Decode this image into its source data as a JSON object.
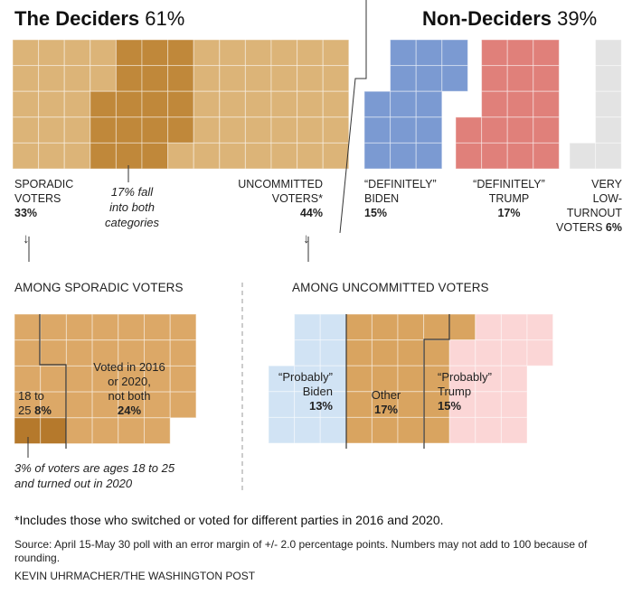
{
  "headers": {
    "deciders_label": "The Deciders",
    "deciders_pct": "61%",
    "nondeciders_label": "Non-Deciders",
    "nondeciders_pct": "39%"
  },
  "top_labels": {
    "sporadic": {
      "line1": "SPORADIC",
      "line2": "VOTERS",
      "pct": "33%"
    },
    "both_note": {
      "line1": "17% fall",
      "line2": "into both",
      "line3": "categories"
    },
    "uncommitted": {
      "line1": "UNCOMMITTED",
      "line2": "VOTERS*",
      "pct": "44%"
    },
    "biden": {
      "line1": "“DEFINITELY”",
      "line2": "BIDEN",
      "pct": "15%"
    },
    "trump": {
      "line1": "“DEFINITELY”",
      "line2": "TRUMP",
      "pct": "17%"
    },
    "lowturnout": {
      "line1": "VERY",
      "line2": "LOW-",
      "line3": "TURNOUT",
      "line4": "VOTERS",
      "pct": "6%"
    }
  },
  "arrows": {
    "glyph": "↓"
  },
  "sections": {
    "sporadic_title": "AMONG SPORADIC VOTERS",
    "uncommitted_title": "AMONG UNCOMMITTED VOTERS"
  },
  "sporadic_labels": {
    "young_line1": "18 to",
    "young_line2": "25",
    "young_pct": "8%",
    "voted_line1": "Voted in 2016",
    "voted_line2": "or 2020,",
    "voted_line3": "not both",
    "voted_pct": "24%",
    "note_line1": "3% of voters are ages 18 to 25",
    "note_line2": "and turned out in 2020"
  },
  "uncommitted_labels": {
    "prob_biden_line1": "“Probably”",
    "prob_biden_line2": "Biden",
    "prob_biden_pct": "13%",
    "other_line1": "Other",
    "other_pct": "17%",
    "prob_trump_line1": "“Probably”",
    "prob_trump_line2": "Trump",
    "prob_trump_pct": "15%"
  },
  "footnote": "*Includes those who switched or voted for different parties in 2016 and 2020.",
  "source": "Source: April 15-May 30 poll with an error margin of +/- 2.0 percentage points. Numbers may not add to 100 because of rounding.",
  "credit": "KEVIN UHRMACHER/THE WASHINGTON POST",
  "colors": {
    "deciders": "#dcb478",
    "overlap": "#c0883a",
    "sporadic_panel": "#dca867",
    "young": "#b5792c",
    "biden": "#7b9ad2",
    "trump": "#e0807a",
    "lowturnout": "#e3e3e3",
    "prob_biden": "#d1e3f4",
    "other": "#d9a460",
    "prob_trump": "#fbd6d6",
    "connector": "#333333"
  },
  "chart_data": [
    {
      "type": "waffle",
      "title": "The Deciders 61% / Non-Deciders 39%",
      "series": [
        {
          "name": "SPORADIC VOTERS",
          "value": 33
        },
        {
          "name": "17% fall into both categories",
          "value": 17
        },
        {
          "name": "UNCOMMITTED VOTERS*",
          "value": 44
        },
        {
          "name": "“DEFINITELY” BIDEN",
          "value": 15
        },
        {
          "name": "“DEFINITELY” TRUMP",
          "value": 17
        },
        {
          "name": "VERY LOW-TURNOUT VOTERS",
          "value": 6
        }
      ]
    },
    {
      "type": "waffle",
      "title": "AMONG SPORADIC VOTERS",
      "series": [
        {
          "name": "18 to 25",
          "value": 8
        },
        {
          "name": "Voted in 2016 or 2020, not both",
          "value": 24
        },
        {
          "name": "3% of voters are ages 18 to 25 and turned out in 2020",
          "value": 3
        }
      ]
    },
    {
      "type": "waffle",
      "title": "AMONG UNCOMMITTED VOTERS",
      "series": [
        {
          "name": "“Probably” Biden",
          "value": 13
        },
        {
          "name": "Other",
          "value": 17
        },
        {
          "name": "“Probably” Trump",
          "value": 15
        }
      ]
    }
  ]
}
